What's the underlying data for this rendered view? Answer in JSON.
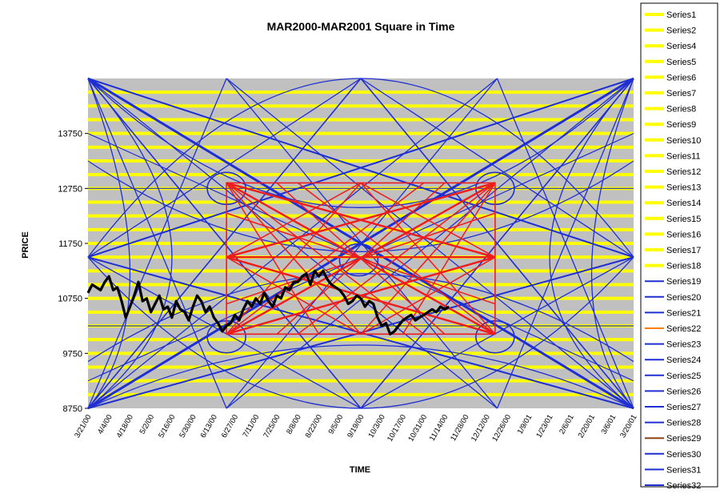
{
  "chart_data": {
    "type": "line",
    "title": "MAR2000-MAR2001 Square in Time",
    "xlabel": "TIME",
    "ylabel": "PRICE",
    "ylim": [
      8750,
      14750
    ],
    "yticks": [
      "8750",
      "9750",
      "10750",
      "11750",
      "12750",
      "13750"
    ],
    "xtick_labels": [
      "3/21/00",
      "4/4/00",
      "4/18/00",
      "5/2/00",
      "5/16/00",
      "5/30/00",
      "6/13/00",
      "6/27/00",
      "7/11/00",
      "7/25/00",
      "8/8/00",
      "8/22/00",
      "9/5/00",
      "9/19/00",
      "10/3/00",
      "10/17/00",
      "10/31/00",
      "11/14/00",
      "11/28/00",
      "12/12/00",
      "12/26/00",
      "1/9/01",
      "1/23/01",
      "2/6/01",
      "2/20/01",
      "3/6/01",
      "3/20/01"
    ],
    "grid": false,
    "legend_position": "right",
    "colors": {
      "plot_background": "#c0c0c0",
      "yellow_series": "#ffff00",
      "blue_series": "#1f2fd1",
      "red_series": "#ee1c1c",
      "price_series": "#000000",
      "orange_series": "#ff8000",
      "brown_series": "#8b4513"
    },
    "legend_entries": [
      {
        "name": "Series1",
        "color": "#ffff00"
      },
      {
        "name": "Series2",
        "color": "#ffff00"
      },
      {
        "name": "Series4",
        "color": "#ffff00"
      },
      {
        "name": "Series5",
        "color": "#ffff00"
      },
      {
        "name": "Series6",
        "color": "#ffff00"
      },
      {
        "name": "Series7",
        "color": "#ffff00"
      },
      {
        "name": "Series8",
        "color": "#ffff00"
      },
      {
        "name": "Series9",
        "color": "#ffff00"
      },
      {
        "name": "Series10",
        "color": "#ffff00"
      },
      {
        "name": "Series11",
        "color": "#ffff00"
      },
      {
        "name": "Series12",
        "color": "#ffff00"
      },
      {
        "name": "Series13",
        "color": "#ffff00"
      },
      {
        "name": "Series14",
        "color": "#ffff00"
      },
      {
        "name": "Series15",
        "color": "#ffff00"
      },
      {
        "name": "Series16",
        "color": "#ffff00"
      },
      {
        "name": "Series17",
        "color": "#ffff00"
      },
      {
        "name": "Series18",
        "color": "#ffff00"
      },
      {
        "name": "Series19",
        "color": "#1f2fd1"
      },
      {
        "name": "Series20",
        "color": "#1f2fd1"
      },
      {
        "name": "Series21",
        "color": "#1f2fd1"
      },
      {
        "name": "Series22",
        "color": "#ff8000"
      },
      {
        "name": "Series23",
        "color": "#1f2fd1"
      },
      {
        "name": "Series24",
        "color": "#1f2fd1"
      },
      {
        "name": "Series25",
        "color": "#1f2fd1"
      },
      {
        "name": "Series26",
        "color": "#1f2fd1"
      },
      {
        "name": "Series27",
        "color": "#1f2fd1"
      },
      {
        "name": "Series28",
        "color": "#1f2fd1"
      },
      {
        "name": "Series29",
        "color": "#8b4513"
      },
      {
        "name": "Series30",
        "color": "#1f2fd1"
      },
      {
        "name": "Series31",
        "color": "#1f2fd1"
      },
      {
        "name": "Series32",
        "color": "#1f2fd1"
      }
    ],
    "price_series": {
      "x": [
        0,
        0.2,
        0.4,
        0.6,
        0.8,
        1.0,
        1.2,
        1.4,
        1.6,
        1.8,
        2.0,
        2.2,
        2.4,
        2.6,
        2.8,
        3.0,
        3.2,
        3.4,
        3.6,
        3.8,
        4.0,
        4.2,
        4.4,
        4.6,
        4.8,
        5.0,
        5.2,
        5.4,
        5.6,
        5.8,
        6.0,
        6.2,
        6.4,
        6.6,
        6.8,
        7.0,
        7.2,
        7.4,
        7.6,
        7.8,
        8.0,
        8.2,
        8.4,
        8.6,
        8.8,
        9.0,
        9.2,
        9.4,
        9.6,
        9.8,
        10.0,
        10.2,
        10.4,
        10.6,
        10.8,
        11.0,
        11.2,
        11.4,
        11.6,
        11.8,
        12.0,
        12.2,
        12.4,
        12.6,
        12.8,
        13.0,
        13.2,
        13.4,
        13.6,
        13.8,
        14.0,
        14.2,
        14.4,
        14.6,
        14.8,
        15.0,
        15.2,
        15.4,
        15.6,
        15.8,
        16.0,
        16.2,
        16.4,
        16.6,
        16.8,
        17.0,
        17.2
      ],
      "y": [
        10850,
        11000,
        10950,
        10900,
        11050,
        11150,
        10900,
        10950,
        10700,
        10400,
        10600,
        10800,
        11050,
        10700,
        10750,
        10500,
        10650,
        10800,
        10550,
        10600,
        10400,
        10700,
        10550,
        10500,
        10350,
        10600,
        10800,
        10700,
        10500,
        10600,
        10400,
        10300,
        10150,
        10250,
        10300,
        10450,
        10350,
        10550,
        10700,
        10600,
        10750,
        10650,
        10850,
        10700,
        10600,
        10800,
        10750,
        10950,
        10900,
        11050,
        11050,
        11150,
        11200,
        11000,
        11250,
        11150,
        11250,
        11100,
        11000,
        10950,
        10900,
        10800,
        10650,
        10700,
        10800,
        10750,
        10600,
        10700,
        10650,
        10400,
        10250,
        10300,
        10100,
        10150,
        10250,
        10350,
        10400,
        10450,
        10350,
        10400,
        10450,
        10500,
        10550,
        10500,
        10600,
        10550,
        10600
      ]
    }
  }
}
